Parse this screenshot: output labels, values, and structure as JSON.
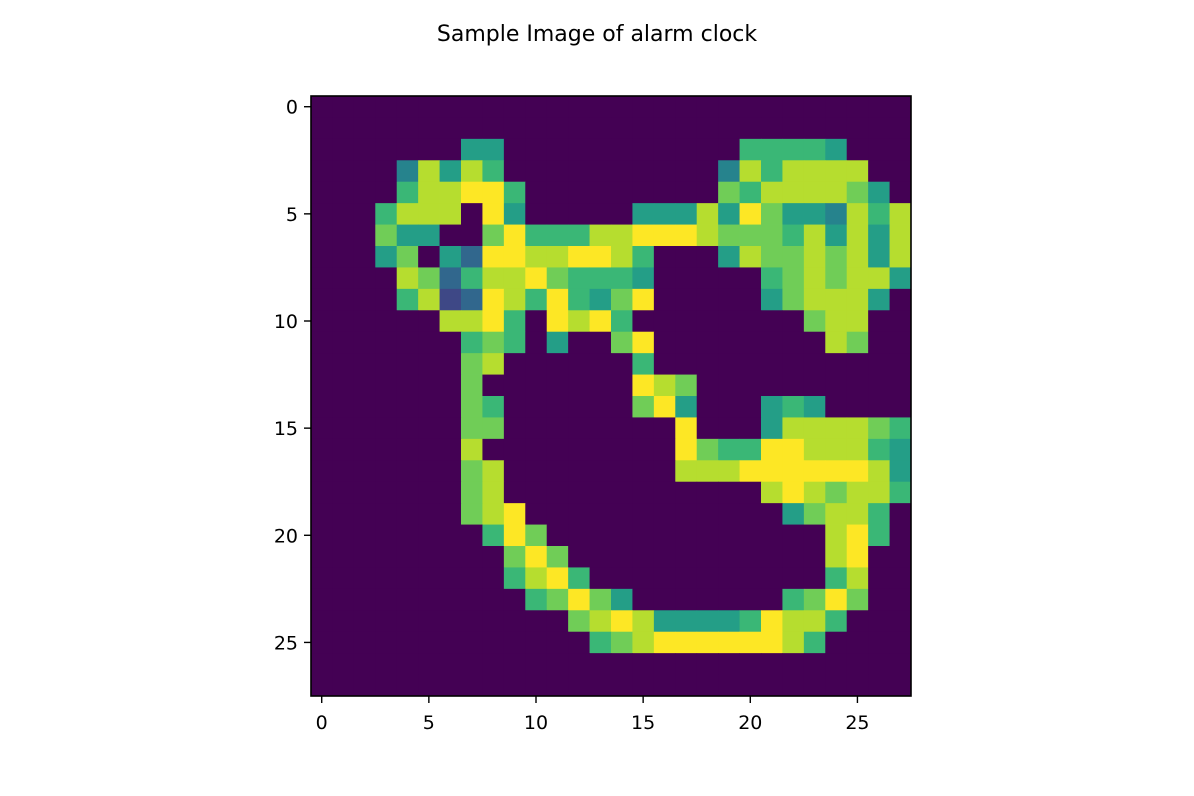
{
  "chart_data": {
    "type": "heatmap",
    "title": "Sample Image of alarm clock",
    "xlabel": "",
    "ylabel": "",
    "colormap": "viridis",
    "value_range": [
      0,
      255
    ],
    "xlim": [
      -0.5,
      27.5
    ],
    "ylim": [
      27.5,
      -0.5
    ],
    "x_ticks": [
      0,
      5,
      10,
      15,
      20,
      25
    ],
    "y_ticks": [
      0,
      5,
      10,
      15,
      20,
      25
    ],
    "x_tick_labels": [
      "0",
      "5",
      "10",
      "15",
      "20",
      "25"
    ],
    "y_tick_labels": [
      "0",
      "5",
      "10",
      "15",
      "20",
      "25"
    ],
    "rows": 28,
    "cols": 28,
    "pixels": [
      "0000000000000000000000000000",
      "0000000000000000000000000000",
      "0000000550000000000066665000",
      "0000485860000000000486888800",
      "0000688996000000000768888750",
      "0006888095000005558597554868",
      "0007550079666889998777685858",
      "0005705399889986000587787858",
      "0000873688976665000006787885",
      "0000682398696579000005788850",
      "0000008896098960000000078800",
      "0000000676050079000000008700",
      "0000000780000006000000000000",
      "0000000700000009870000000000",
      "0000000760000007950005650000",
      "0000000770000000090005888876"
    ],
    "pixels_ext": [
      "0000000800000000097669988865",
      "0000000780000000088899999985",
      "0000000780000000000008987886",
      "0000000789000000000000578860",
      "0000000069700000000000008960",
      "0000000007970000000000008900",
      "0000000006896000000000006800",
      "0000000000679750000000679700",
      "0000000000007898555569886000",
      "0000000000000678999999860000",
      "0000000000000000000000000000",
      "0000000000000000000000000000"
    ]
  }
}
